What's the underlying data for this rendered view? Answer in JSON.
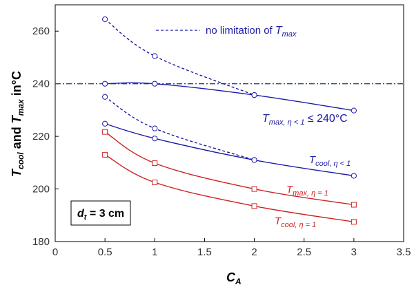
{
  "chart_data": {
    "type": "line",
    "xlabel": "C",
    "xlabel_sub": "A",
    "ylabel_parts": [
      "T",
      "cool",
      " and ",
      "T",
      "max",
      " in°C"
    ],
    "xlim": [
      0,
      3.5
    ],
    "ylim": [
      180,
      270
    ],
    "x_ticks": [
      "0",
      "0.5",
      "1",
      "1.5",
      "2",
      "2.5",
      "3",
      "3.5"
    ],
    "y_ticks": [
      "180",
      "200",
      "220",
      "240",
      "260"
    ],
    "grid": false,
    "reference_line": {
      "y": 240,
      "style": "dash-dot",
      "color": "#1f4e79"
    },
    "legend": {
      "text_pre": "no limitation of ",
      "text_var": "T",
      "text_sub": "max",
      "style": "dashed",
      "color": "#1a1aa6",
      "position": "top"
    },
    "box_label": {
      "var": "d",
      "sub": "t",
      "value": " = 3 cm"
    },
    "colors": {
      "blue": "#1a1aa6",
      "red": "#cc2222"
    },
    "series": [
      {
        "id": "tmax-nolimit",
        "style": "dashed",
        "marker": "circle",
        "color": "#1a1aa6",
        "x": [
          0.5,
          1,
          2
        ],
        "y": [
          264.5,
          250.5,
          235.7
        ]
      },
      {
        "id": "tcool-nolimit",
        "style": "dashed",
        "marker": "circle",
        "color": "#1a1aa6",
        "x": [
          0.5,
          1,
          2
        ],
        "y": [
          235,
          223,
          211
        ]
      },
      {
        "id": "tmax-eta-lt1",
        "style": "solid",
        "marker": "circle",
        "color": "#1a1aa6",
        "x": [
          0.5,
          1,
          2,
          3
        ],
        "y": [
          240,
          240,
          235.7,
          229.8
        ]
      },
      {
        "id": "tcool-eta-lt1",
        "style": "solid",
        "marker": "circle",
        "color": "#1a1aa6",
        "x": [
          0.5,
          1,
          2,
          3
        ],
        "y": [
          224.8,
          219.2,
          211,
          205
        ]
      },
      {
        "id": "tmax-eta1",
        "style": "solid",
        "marker": "square",
        "color": "#cc2222",
        "x": [
          0.5,
          1,
          2,
          3
        ],
        "y": [
          221.7,
          209.8,
          200,
          194
        ]
      },
      {
        "id": "tcool-eta1",
        "style": "solid",
        "marker": "square",
        "color": "#cc2222",
        "x": [
          0.5,
          1,
          2,
          3
        ],
        "y": [
          213,
          202.5,
          193.5,
          187.5
        ]
      }
    ],
    "annotations": [
      {
        "id": "ann-tmax-lt1",
        "color": "blue",
        "var": "T",
        "sub": "max, η < 1",
        "suffix": " ≤ 240°C"
      },
      {
        "id": "ann-tcool-lt1",
        "color": "blue",
        "var": "T",
        "sub": "cool, η < 1",
        "suffix": ""
      },
      {
        "id": "ann-tmax-eta1",
        "color": "red",
        "var": "T",
        "sub": "max, η = 1",
        "suffix": ""
      },
      {
        "id": "ann-tcool-eta1",
        "color": "red",
        "var": "T",
        "sub": "cool, η = 1",
        "suffix": ""
      }
    ]
  }
}
